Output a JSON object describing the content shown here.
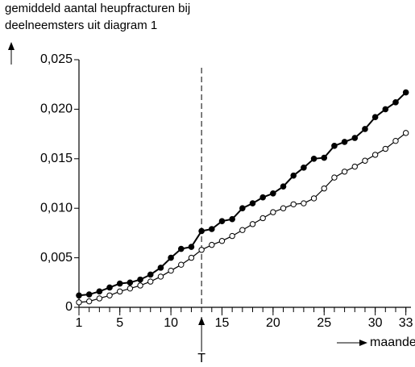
{
  "chart_data": {
    "type": "line",
    "title": [
      "gemiddeld aantal heupfracturen bij",
      "deelneemsters uit diagram 1"
    ],
    "x_label": "maanden",
    "x": [
      1,
      2,
      3,
      4,
      5,
      6,
      7,
      8,
      9,
      10,
      11,
      12,
      13,
      14,
      15,
      16,
      17,
      18,
      19,
      20,
      21,
      22,
      23,
      24,
      25,
      26,
      27,
      28,
      29,
      30,
      31,
      32,
      33
    ],
    "series": [
      {
        "color": "#000000",
        "marker": "filled",
        "values": [
          0.0012,
          0.0013,
          0.0016,
          0.002,
          0.0024,
          0.0025,
          0.0028,
          0.0033,
          0.004,
          0.005,
          0.0059,
          0.0061,
          0.0077,
          0.0079,
          0.0087,
          0.0089,
          0.01,
          0.0105,
          0.0111,
          0.0115,
          0.0122,
          0.0133,
          0.0141,
          0.015,
          0.0151,
          0.0163,
          0.0167,
          0.0171,
          0.018,
          0.0192,
          0.02,
          0.0207,
          0.0217
        ]
      },
      {
        "color": "#000000",
        "marker": "open",
        "values": [
          0.0005,
          0.0006,
          0.0009,
          0.0012,
          0.0016,
          0.0019,
          0.0022,
          0.0026,
          0.0031,
          0.0037,
          0.0043,
          0.005,
          0.0058,
          0.0063,
          0.0067,
          0.0072,
          0.0078,
          0.0084,
          0.009,
          0.0096,
          0.01,
          0.0104,
          0.0105,
          0.011,
          0.012,
          0.0131,
          0.0137,
          0.0142,
          0.0148,
          0.0154,
          0.016,
          0.0168,
          0.0176
        ]
      }
    ],
    "xlim": [
      1,
      33.5
    ],
    "xticks": [
      1,
      5,
      10,
      15,
      20,
      25,
      30,
      33
    ],
    "xminorticks": [
      1,
      2,
      3,
      4,
      5,
      6,
      7,
      8,
      9,
      10,
      11,
      12,
      13,
      14,
      15,
      16,
      17,
      18,
      19,
      20,
      21,
      22,
      23,
      24,
      25,
      26,
      27,
      28,
      29,
      30,
      31,
      32,
      33
    ],
    "ylim": [
      0,
      0.025
    ],
    "yticks": [
      0,
      {
        "value": 0.005,
        "label": "0,005"
      },
      {
        "value": 0.01,
        "label": "0,010"
      },
      {
        "value": 0.015,
        "label": "0,015"
      },
      {
        "value": 0.02,
        "label": "0,020"
      },
      {
        "value": 0.025,
        "label": "0,025"
      }
    ],
    "annotations": [
      {
        "x": 13,
        "label": "T"
      }
    ]
  }
}
